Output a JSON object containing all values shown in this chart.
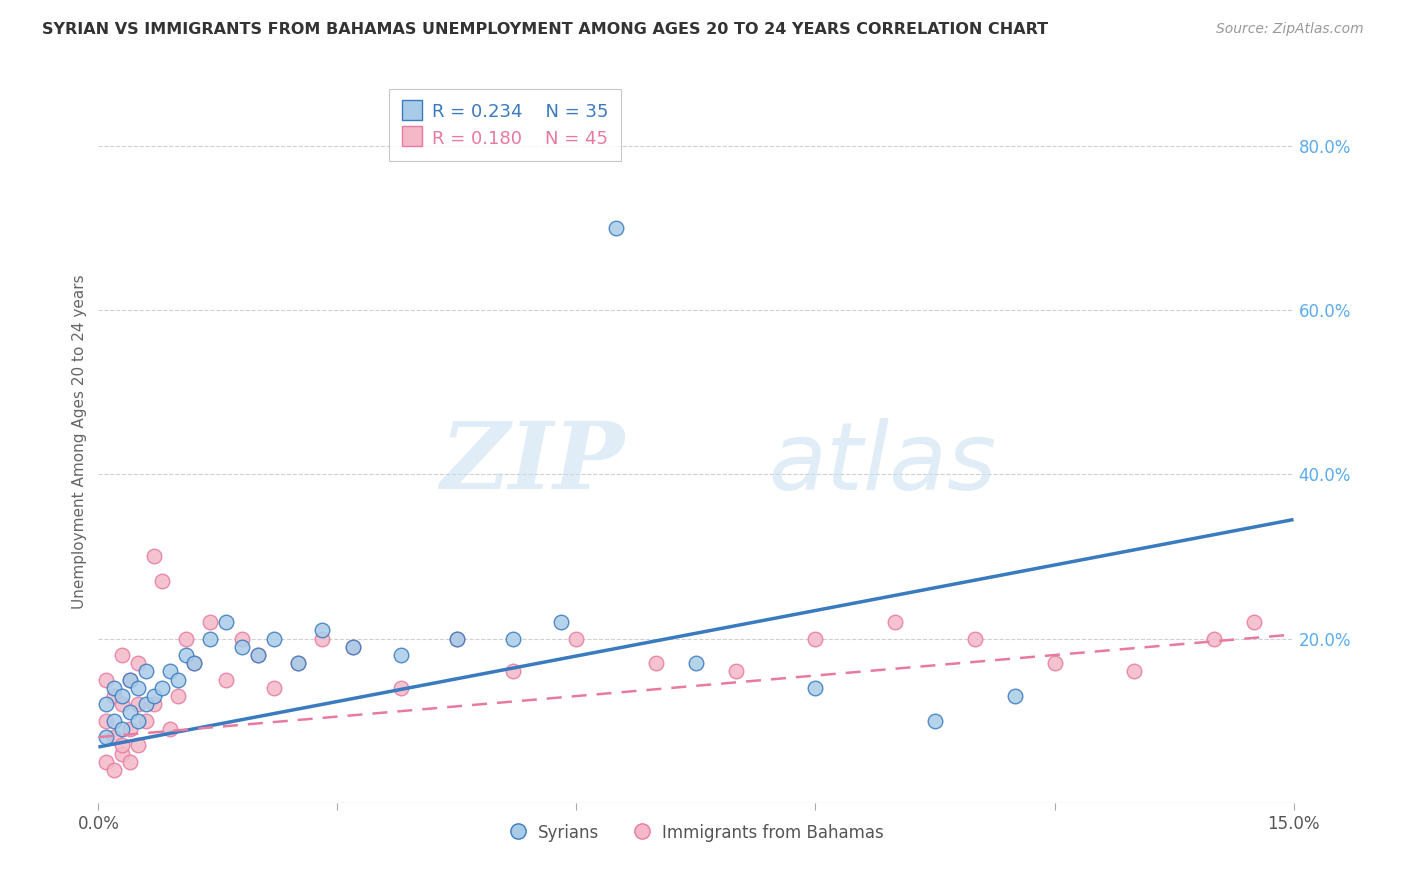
{
  "title": "SYRIAN VS IMMIGRANTS FROM BAHAMAS UNEMPLOYMENT AMONG AGES 20 TO 24 YEARS CORRELATION CHART",
  "source": "Source: ZipAtlas.com",
  "ylabel": "Unemployment Among Ages 20 to 24 years",
  "xlim": [
    0.0,
    0.15
  ],
  "ylim": [
    0.0,
    0.88
  ],
  "xticks": [
    0.0,
    0.03,
    0.06,
    0.09,
    0.12,
    0.15
  ],
  "xtick_labels": [
    "0.0%",
    "",
    "",
    "",
    "",
    "15.0%"
  ],
  "yticks_right": [
    0.0,
    0.2,
    0.4,
    0.6,
    0.8
  ],
  "ytick_labels_right": [
    "",
    "20.0%",
    "40.0%",
    "60.0%",
    "80.0%"
  ],
  "blue_color": "#a8cce8",
  "pink_color": "#f4b8c8",
  "blue_line_color": "#3a7abf",
  "pink_line_color": "#e87aa0",
  "legend_r_blue": "R = 0.234",
  "legend_n_blue": "N = 35",
  "legend_r_pink": "R = 0.180",
  "legend_n_pink": "N = 45",
  "legend_label_blue": "Syrians",
  "legend_label_pink": "Immigrants from Bahamas",
  "watermark_zip": "ZIP",
  "watermark_atlas": "atlas",
  "syrians_x": [
    0.001,
    0.001,
    0.002,
    0.002,
    0.003,
    0.003,
    0.004,
    0.004,
    0.005,
    0.005,
    0.006,
    0.006,
    0.007,
    0.008,
    0.009,
    0.01,
    0.011,
    0.012,
    0.014,
    0.016,
    0.018,
    0.02,
    0.022,
    0.025,
    0.028,
    0.032,
    0.038,
    0.045,
    0.052,
    0.058,
    0.065,
    0.075,
    0.09,
    0.105,
    0.115
  ],
  "syrians_y": [
    0.08,
    0.12,
    0.1,
    0.14,
    0.09,
    0.13,
    0.11,
    0.15,
    0.1,
    0.14,
    0.12,
    0.16,
    0.13,
    0.14,
    0.16,
    0.15,
    0.18,
    0.17,
    0.2,
    0.22,
    0.19,
    0.18,
    0.2,
    0.17,
    0.21,
    0.19,
    0.18,
    0.2,
    0.2,
    0.22,
    0.7,
    0.17,
    0.14,
    0.1,
    0.13
  ],
  "bahamas_x": [
    0.001,
    0.001,
    0.001,
    0.002,
    0.002,
    0.003,
    0.003,
    0.003,
    0.004,
    0.004,
    0.005,
    0.005,
    0.005,
    0.006,
    0.007,
    0.007,
    0.008,
    0.009,
    0.01,
    0.011,
    0.012,
    0.014,
    0.016,
    0.018,
    0.02,
    0.022,
    0.025,
    0.028,
    0.032,
    0.038,
    0.045,
    0.052,
    0.06,
    0.07,
    0.08,
    0.09,
    0.1,
    0.11,
    0.12,
    0.13,
    0.14,
    0.145,
    0.002,
    0.003,
    0.004
  ],
  "bahamas_y": [
    0.05,
    0.1,
    0.15,
    0.08,
    0.13,
    0.06,
    0.12,
    0.18,
    0.09,
    0.15,
    0.07,
    0.12,
    0.17,
    0.1,
    0.3,
    0.12,
    0.27,
    0.09,
    0.13,
    0.2,
    0.17,
    0.22,
    0.15,
    0.2,
    0.18,
    0.14,
    0.17,
    0.2,
    0.19,
    0.14,
    0.2,
    0.16,
    0.2,
    0.17,
    0.16,
    0.2,
    0.22,
    0.2,
    0.17,
    0.16,
    0.2,
    0.22,
    0.04,
    0.07,
    0.05
  ],
  "blue_trend_x": [
    0.0,
    0.15
  ],
  "blue_trend_y": [
    0.068,
    0.345
  ],
  "pink_trend_x": [
    0.0,
    0.15
  ],
  "pink_trend_y": [
    0.08,
    0.205
  ],
  "background_color": "#ffffff",
  "grid_color": "#d0d0d0",
  "title_color": "#333333",
  "axis_label_color": "#666666",
  "right_axis_color": "#5aacf0"
}
